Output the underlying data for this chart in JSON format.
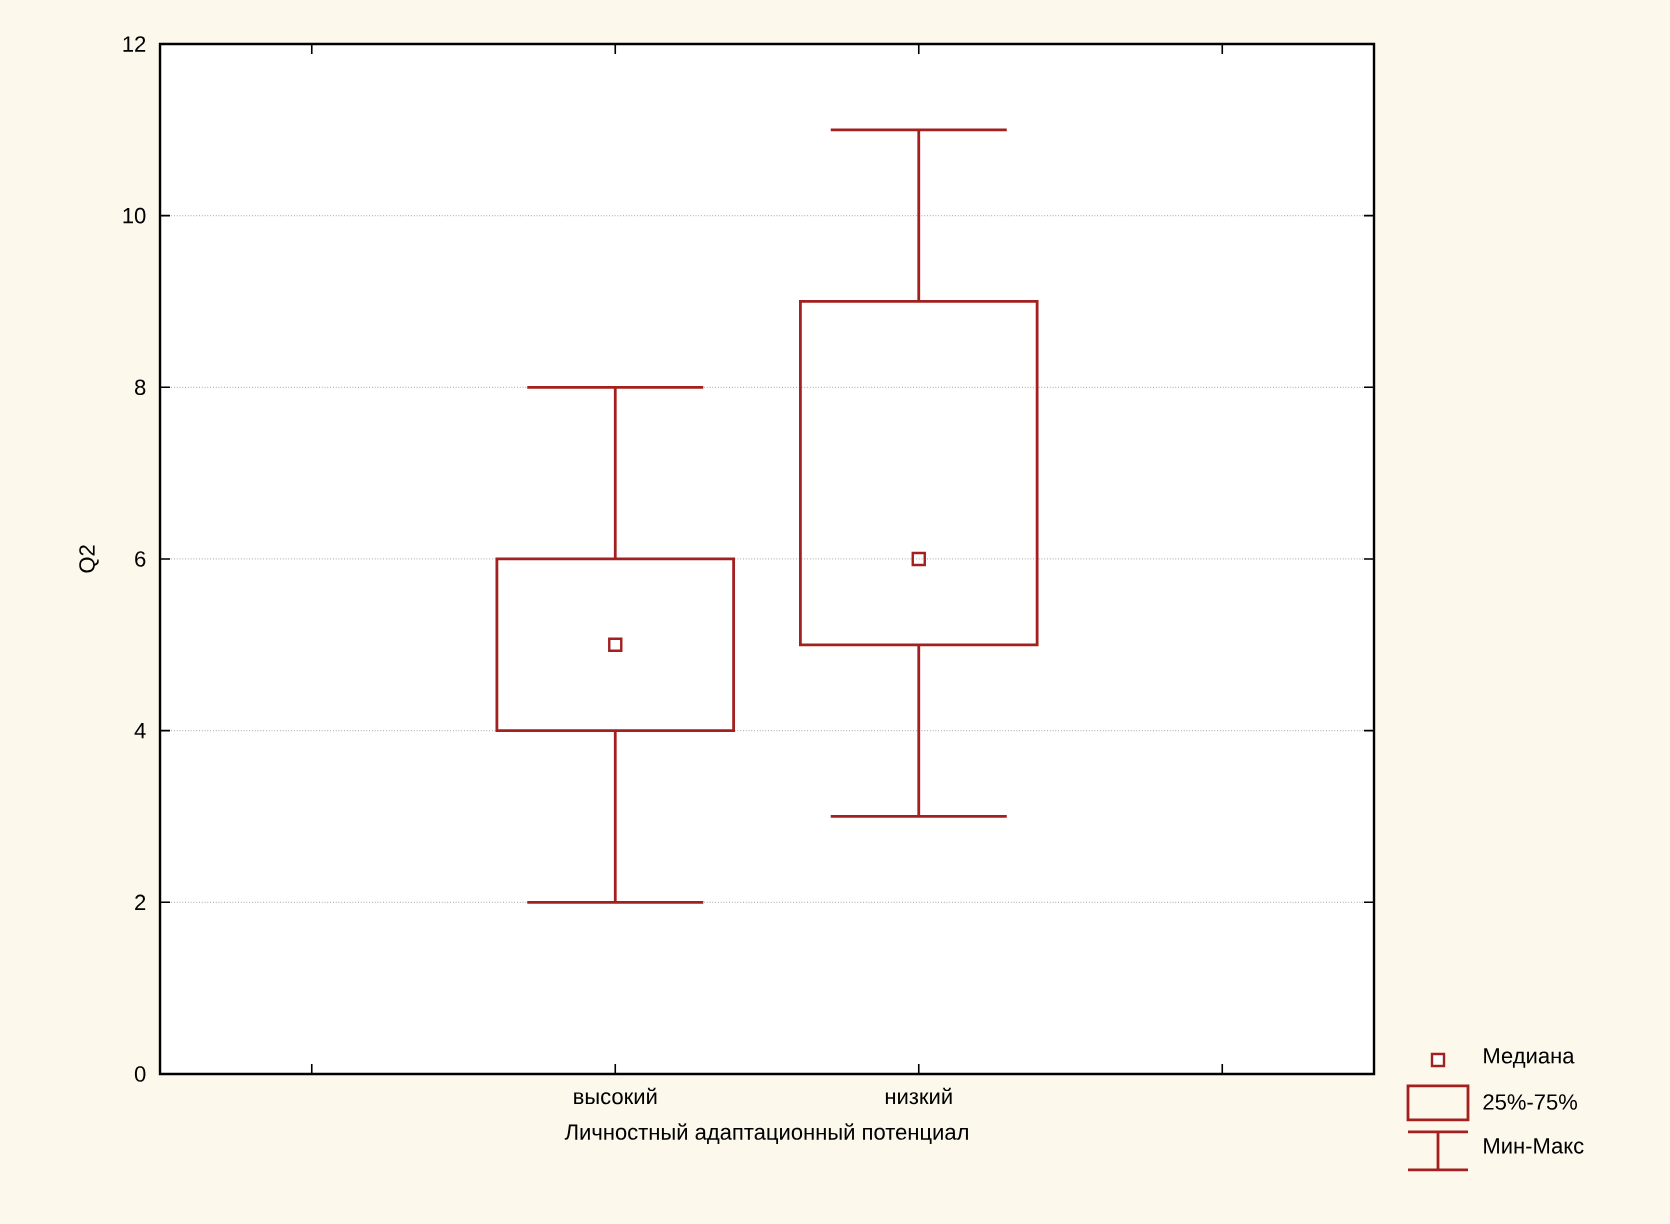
{
  "chart_data": {
    "type": "box",
    "ylabel": "Q2",
    "xlabel": "Личностный адаптационный потенциал",
    "categories": [
      "высокий",
      "низкий"
    ],
    "boxes": [
      {
        "low": 2,
        "q1": 4,
        "median": 5,
        "q3": 6,
        "high": 8
      },
      {
        "low": 3,
        "q1": 5,
        "median": 6,
        "q3": 9,
        "high": 11
      }
    ],
    "color": "#a32020",
    "ylim": [
      0,
      12
    ],
    "yticks": [
      0,
      2,
      4,
      6,
      8,
      10,
      12
    ],
    "grid": "y",
    "marker": "square",
    "annotations": [
      "Медиана",
      "25%-75%",
      "Мин-Макс"
    ]
  }
}
